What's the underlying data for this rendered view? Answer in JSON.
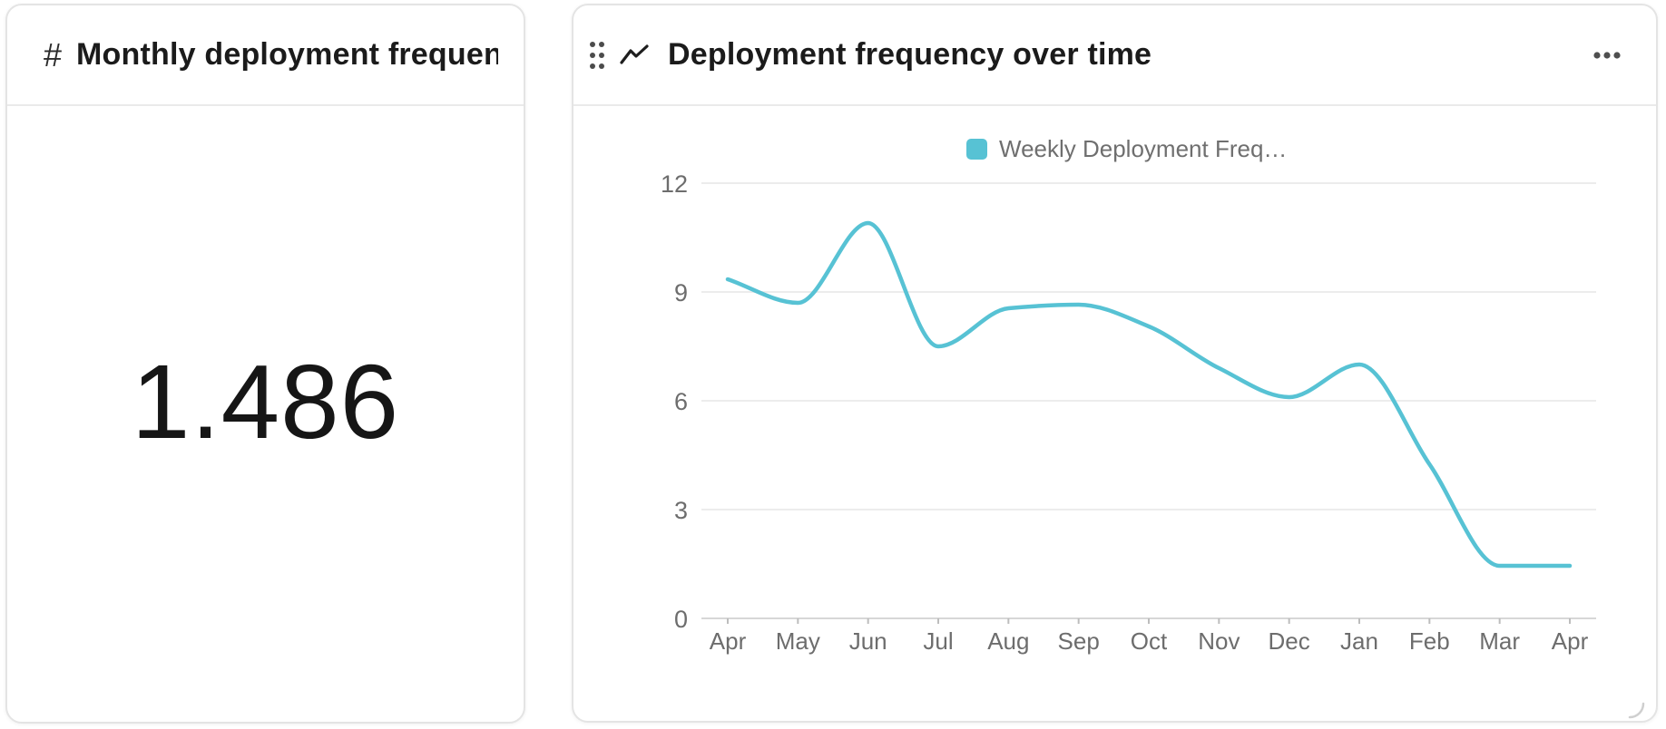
{
  "kpi_card": {
    "icon": "hash-icon",
    "icon_glyph": "#",
    "title": "Monthly deployment frequen…",
    "value": "1.486"
  },
  "chart_card": {
    "title": "Deployment frequency over time",
    "menu_icon": "ellipsis-icon",
    "drag_icon": "drag-handle-icon",
    "type_icon": "line-chart-icon"
  },
  "chart_data": {
    "type": "line",
    "title": "Deployment frequency over time",
    "x": [
      "Apr",
      "May",
      "Jun",
      "Jul",
      "Aug",
      "Sep",
      "Oct",
      "Nov",
      "Dec",
      "Jan",
      "Feb",
      "Mar",
      "Apr"
    ],
    "series": [
      {
        "name": "Weekly Deployment Freq…",
        "color": "#57c2d4",
        "values": [
          9.35,
          8.7,
          10.9,
          7.5,
          8.55,
          8.65,
          8.05,
          6.9,
          6.1,
          7.0,
          4.25,
          1.45,
          1.45
        ]
      }
    ],
    "ylim": [
      0,
      12
    ],
    "yticks": [
      0,
      3,
      6,
      9,
      12
    ],
    "grid": true,
    "legend_position": "top",
    "smooth": true
  },
  "colors": {
    "accent_teal": "#57c2d4",
    "grid_line": "#ececec",
    "axis_line": "#d7d7d7",
    "tick_mark": "#bdbdbd",
    "axis_label": "#6d6d6d",
    "legend_text": "#6f6f6f",
    "title_text": "#1b1b1b",
    "icon_gray": "#4b4b4b",
    "card_border": "#e4e4e4",
    "resize_grip": "#cfcfcf"
  }
}
